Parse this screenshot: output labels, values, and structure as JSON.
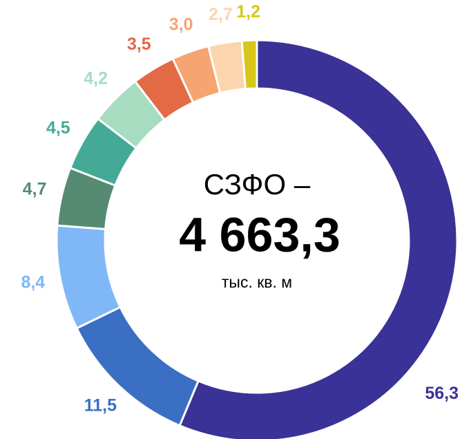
{
  "chart_data": {
    "type": "donut",
    "center_title": "СЗФО –",
    "center_value": "4 663,3",
    "center_unit": "тыс. кв. м",
    "values": [
      56.3,
      11.5,
      8.4,
      4.7,
      4.5,
      4.2,
      3.5,
      3.0,
      2.7,
      1.2
    ],
    "value_labels": [
      "56,3",
      "11,5",
      "8,4",
      "4,7",
      "4,5",
      "4,2",
      "3,5",
      "3,0",
      "2,7",
      "1,2"
    ],
    "colors": [
      "#3a3296",
      "#3a6fc4",
      "#80b7f6",
      "#578a72",
      "#44aa96",
      "#a6dcc0",
      "#e26a45",
      "#f6a470",
      "#fbd5ae",
      "#d8c61a"
    ]
  }
}
